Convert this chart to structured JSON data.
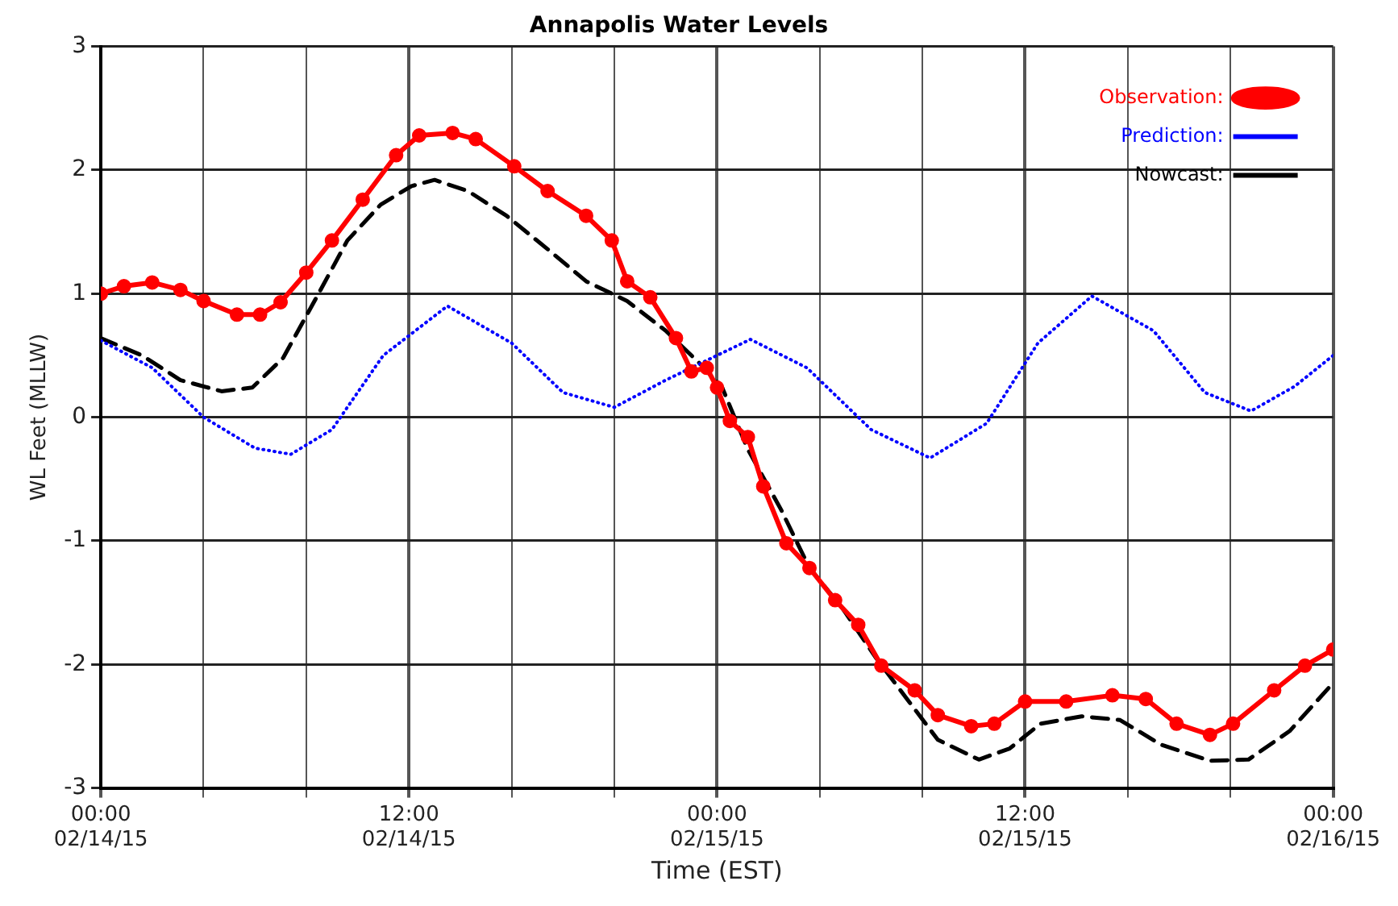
{
  "chart_data": {
    "type": "line",
    "title": "Annapolis Water Levels",
    "xlabel": "Time (EST)",
    "ylabel": "WL Feet (MLLW)",
    "xlim": [
      "--02-14T00:00",
      "--02-16T00:00"
    ],
    "xticks": [
      {
        "value": "--02-14T00:00",
        "label": "00:00\n02/14/15"
      },
      {
        "value": "--02-14T04:00",
        "label": null
      },
      {
        "value": "--02-14T08:00",
        "label": null
      },
      {
        "value": "--02-14T12:00",
        "label": "12:00\n02/14/15"
      },
      {
        "value": "--02-14T16:00",
        "label": null
      },
      {
        "value": "--02-14T20:00",
        "label": null
      },
      {
        "value": "--02-15T00:00",
        "label": "00:00\n02/15/15"
      },
      {
        "value": "--02-15T04:00",
        "label": null
      },
      {
        "value": "--02-15T08:00",
        "label": null
      },
      {
        "value": "--02-15T12:00",
        "label": "12:00\n02/15/15"
      },
      {
        "value": "--02-15T16:00",
        "label": null
      },
      {
        "value": "--02-15T20:00",
        "label": null
      },
      {
        "value": "--02-16T00:00",
        "label": "00:00\n02/16/15"
      }
    ],
    "ylim": [
      -3,
      3
    ],
    "yticks": [
      -3,
      -2,
      -1,
      0,
      1,
      2,
      3
    ],
    "grid": true,
    "legend": "top right",
    "series": [
      {
        "name": "Observation:",
        "color": "#ff0000",
        "marker": "circle",
        "line_style": "solid",
        "x": [
          "--02-14T00:00",
          "--02-14T00:54",
          "--02-14T02:00",
          "--02-14T03:06",
          "--02-14T04:00",
          "--02-14T05:18",
          "--02-14T06:12",
          "--02-14T07:00",
          "--02-14T08:00",
          "--02-14T09:00",
          "--02-14T10:12",
          "--02-14T11:30",
          "--02-14T12:24",
          "--02-14T13:42",
          "--02-14T14:36",
          "--02-14T16:06",
          "--02-14T17:24",
          "--02-14T18:54",
          "--02-14T19:54",
          "--02-14T20:30",
          "--02-14T21:24",
          "--02-14T22:24",
          "--02-14T23:00",
          "--02-14T23:36",
          "--02-15T00:00",
          "--02-15T00:30",
          "--02-15T01:12",
          "--02-15T01:48",
          "--02-15T02:42",
          "--02-15T03:36",
          "--02-15T04:36",
          "--02-15T05:30",
          "--02-15T06:24",
          "--02-15T07:42",
          "--02-15T08:36",
          "--02-15T09:54",
          "--02-15T10:48",
          "--02-15T12:00",
          "--02-15T13:36",
          "--02-15T15:24",
          "--02-15T16:42",
          "--02-15T17:54",
          "--02-15T19:12",
          "--02-15T20:06",
          "--02-15T21:42",
          "--02-15T22:54",
          "--02-16T00:00"
        ],
        "values": [
          1.0,
          1.06,
          1.09,
          1.03,
          0.94,
          0.83,
          0.83,
          0.93,
          1.17,
          1.43,
          1.76,
          2.12,
          2.28,
          2.3,
          2.25,
          2.03,
          1.83,
          1.63,
          1.43,
          1.1,
          0.97,
          0.64,
          0.37,
          0.4,
          0.24,
          -0.03,
          -0.16,
          -0.56,
          -1.02,
          -1.22,
          -1.48,
          -1.68,
          -2.01,
          -2.21,
          -2.41,
          -2.5,
          -2.48,
          -2.3,
          -2.3,
          -2.25,
          -2.28,
          -2.48,
          -2.57,
          -2.48,
          -2.21,
          -2.01,
          -1.88
        ]
      },
      {
        "name": "Prediction:",
        "color": "#0000ff",
        "marker": "none",
        "line_style": "dotted",
        "x": [
          "--02-14T00:00",
          "--02-14T02:00",
          "--02-14T04:00",
          "--02-14T06:00",
          "--02-14T07:24",
          "--02-14T09:00",
          "--02-14T11:00",
          "--02-14T13:30",
          "--02-14T16:00",
          "--02-14T18:00",
          "--02-14T20:00",
          "--02-14T22:00",
          "--02-15T01:18",
          "--02-15T03:30",
          "--02-15T06:00",
          "--02-15T08:18",
          "--02-15T10:30",
          "--02-15T12:30",
          "--02-15T14:36",
          "--02-15T17:00",
          "--02-15T19:00",
          "--02-15T20:48",
          "--02-15T22:30",
          "--02-16T00:00"
        ],
        "values": [
          0.62,
          0.4,
          0.0,
          -0.25,
          -0.3,
          -0.1,
          0.5,
          0.9,
          0.6,
          0.2,
          0.08,
          0.3,
          0.63,
          0.4,
          -0.1,
          -0.33,
          -0.05,
          0.6,
          0.98,
          0.7,
          0.2,
          0.05,
          0.25,
          0.5
        ]
      },
      {
        "name": "Nowcast:",
        "color": "#000000",
        "marker": "none",
        "line_style": "dashed",
        "x": [
          "--02-14T00:00",
          "--02-14T01:36",
          "--02-14T03:06",
          "--02-14T04:42",
          "--02-14T05:54",
          "--02-14T07:06",
          "--02-14T08:24",
          "--02-14T09:36",
          "--02-14T10:54",
          "--02-14T12:06",
          "--02-14T13:00",
          "--02-14T14:18",
          "--02-14T15:48",
          "--02-14T17:24",
          "--02-14T18:54",
          "--02-14T20:30",
          "--02-14T22:00",
          "--02-14T23:18",
          "--02-15T00:12",
          "--02-15T01:12",
          "--02-15T02:30",
          "--02-15T03:36",
          "--02-15T04:54",
          "--02-15T06:12",
          "--02-15T07:24",
          "--02-15T08:36",
          "--02-15T10:12",
          "--02-15T11:24",
          "--02-15T12:36",
          "--02-15T14:12",
          "--02-15T15:42",
          "--02-15T17:18",
          "--02-15T19:12",
          "--02-15T20:42",
          "--02-15T22:18",
          "--02-16T00:00"
        ],
        "values": [
          0.64,
          0.5,
          0.3,
          0.21,
          0.24,
          0.48,
          0.97,
          1.43,
          1.72,
          1.87,
          1.92,
          1.83,
          1.63,
          1.36,
          1.1,
          0.94,
          0.7,
          0.44,
          0.24,
          -0.26,
          -0.75,
          -1.22,
          -1.55,
          -1.95,
          -2.28,
          -2.61,
          -2.77,
          -2.68,
          -2.48,
          -2.42,
          -2.45,
          -2.65,
          -2.78,
          -2.77,
          -2.54,
          -2.15
        ]
      }
    ]
  }
}
